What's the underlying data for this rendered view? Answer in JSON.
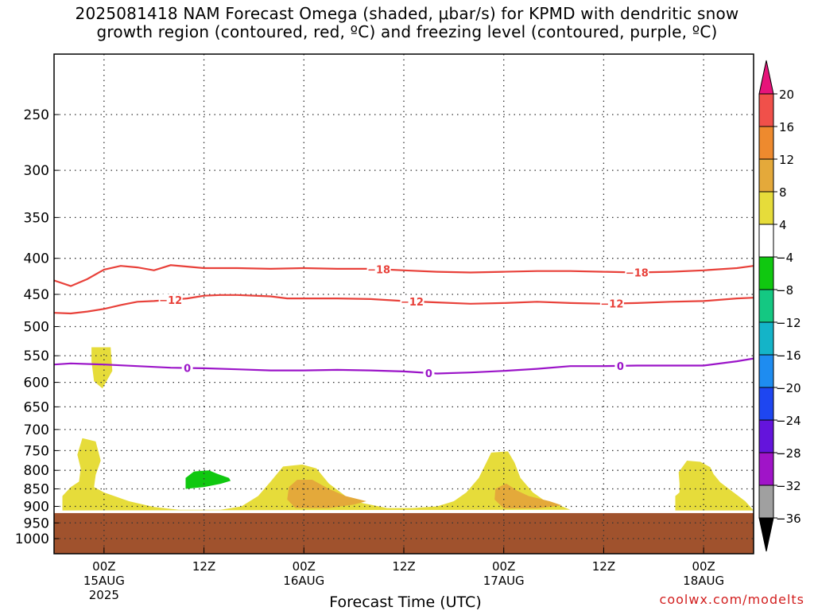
{
  "title": {
    "line1": "2025081418 NAM Forecast Omega (shaded, μbar/s) for KPMD with dendritic snow",
    "line2": "growth region (contoured, red, ºC) and freezing level (contoured, purple, ºC)"
  },
  "credit": "coolwx.com/modelts",
  "chart_data": {
    "type": "heatmap",
    "xlabel": "Forecast Time (UTC)",
    "ylabel": "",
    "xlim_hours": [
      0,
      84
    ],
    "ylim_pressure_hPa": [
      1000,
      200
    ],
    "y_scale": "log-pressure",
    "grid": true,
    "y_ticks": [
      250,
      300,
      350,
      400,
      450,
      500,
      550,
      600,
      650,
      700,
      750,
      800,
      850,
      900,
      950,
      1000
    ],
    "x_ticks": [
      {
        "hour": 6,
        "label1": "00Z",
        "label2": "15AUG",
        "label3": "2025"
      },
      {
        "hour": 18,
        "label1": "12Z",
        "label2": "",
        "label3": ""
      },
      {
        "hour": 30,
        "label1": "00Z",
        "label2": "16AUG",
        "label3": ""
      },
      {
        "hour": 42,
        "label1": "12Z",
        "label2": "",
        "label3": ""
      },
      {
        "hour": 54,
        "label1": "00Z",
        "label2": "17AUG",
        "label3": ""
      },
      {
        "hour": 66,
        "label1": "12Z",
        "label2": "",
        "label3": ""
      },
      {
        "hour": 78,
        "label1": "00Z",
        "label2": "18AUG",
        "label3": ""
      }
    ],
    "ground_level_hPa": 920,
    "ground_color": "#a0522d",
    "colorbar": {
      "units": "μbar/s",
      "labels": [
        "20",
        "16",
        "12",
        "8",
        "4",
        "−4",
        "−8",
        "−12",
        "−16",
        "−20",
        "−24",
        "−28",
        "−32",
        "−36"
      ],
      "bins": [
        {
          "from": 16,
          "to": 20,
          "color": "#f0504a"
        },
        {
          "from": 12,
          "to": 16,
          "color": "#ee8a2e"
        },
        {
          "from": 8,
          "to": 12,
          "color": "#e4a93a"
        },
        {
          "from": 4,
          "to": 8,
          "color": "#e6dc3a"
        },
        {
          "from": -4,
          "to": 4,
          "color": "#ffffff"
        },
        {
          "from": -8,
          "to": -4,
          "color": "#10c810"
        },
        {
          "from": -12,
          "to": -8,
          "color": "#14c882"
        },
        {
          "from": -16,
          "to": -12,
          "color": "#14b4c8"
        },
        {
          "from": -20,
          "to": -16,
          "color": "#1e8cf0"
        },
        {
          "from": -24,
          "to": -20,
          "color": "#1e46f0"
        },
        {
          "from": -28,
          "to": -24,
          "color": "#6414dc"
        },
        {
          "from": -32,
          "to": -28,
          "color": "#a014c8"
        },
        {
          "from": -36,
          "to": -32,
          "color": "#a0a0a0"
        }
      ],
      "over_color": "#e6147a",
      "under_color": "#000000"
    },
    "shaded_regions": [
      {
        "name": "rising-blob-1",
        "value_bin": "4 to 8",
        "color": "#e6dc3a",
        "points": [
          [
            3.4,
            720
          ],
          [
            5.0,
            728
          ],
          [
            5.6,
            775
          ],
          [
            5.0,
            812
          ],
          [
            4.8,
            845
          ],
          [
            6.0,
            860
          ],
          [
            9.0,
            885
          ],
          [
            12.0,
            902
          ],
          [
            15.0,
            910
          ],
          [
            20.0,
            910
          ],
          [
            22.5,
            900
          ],
          [
            24.5,
            870
          ],
          [
            26.0,
            830
          ],
          [
            27.5,
            790
          ],
          [
            29.8,
            785
          ],
          [
            31.5,
            795
          ],
          [
            33.0,
            835
          ],
          [
            35.0,
            870
          ],
          [
            37.0,
            890
          ],
          [
            40.0,
            905
          ],
          [
            43.0,
            905
          ],
          [
            46.0,
            900
          ],
          [
            48.0,
            885
          ],
          [
            49.5,
            860
          ],
          [
            51.0,
            820
          ],
          [
            52.5,
            755
          ],
          [
            54.5,
            752
          ],
          [
            55.3,
            780
          ],
          [
            56.0,
            820
          ],
          [
            57.5,
            860
          ],
          [
            59.0,
            885
          ],
          [
            61.0,
            900
          ],
          [
            62.0,
            910
          ],
          [
            1.0,
            912
          ],
          [
            1.0,
            870
          ],
          [
            2.0,
            845
          ],
          [
            3.0,
            830
          ],
          [
            3.2,
            795
          ],
          [
            2.8,
            760
          ]
        ]
      },
      {
        "name": "rising-blob-2",
        "value_bin": "4 to 8",
        "color": "#e6dc3a",
        "points": [
          [
            4.5,
            535
          ],
          [
            6.8,
            535
          ],
          [
            7.0,
            578
          ],
          [
            5.8,
            612
          ],
          [
            4.8,
            598
          ],
          [
            4.5,
            560
          ]
        ]
      },
      {
        "name": "rising-blob-3",
        "value_bin": "4 to 8",
        "color": "#e6dc3a",
        "points": [
          [
            75.0,
            805
          ],
          [
            76.0,
            775
          ],
          [
            77.6,
            778
          ],
          [
            78.8,
            792
          ],
          [
            79.2,
            810
          ],
          [
            80.0,
            832
          ],
          [
            81.5,
            858
          ],
          [
            83.0,
            885
          ],
          [
            84.0,
            912
          ],
          [
            74.6,
            912
          ],
          [
            74.6,
            870
          ],
          [
            75.1,
            860
          ],
          [
            75.1,
            835
          ]
        ]
      },
      {
        "name": "rising-core-1",
        "value_bin": "8 to 12",
        "color": "#e4a93a",
        "points": [
          [
            28.2,
            845
          ],
          [
            29.2,
            825
          ],
          [
            31.0,
            825
          ],
          [
            33.0,
            850
          ],
          [
            35.0,
            870
          ],
          [
            37.5,
            885
          ],
          [
            36.0,
            895
          ],
          [
            33.0,
            905
          ],
          [
            29.0,
            905
          ],
          [
            28.0,
            880
          ]
        ]
      },
      {
        "name": "rising-core-2",
        "value_bin": "8 to 12",
        "color": "#e4a93a",
        "points": [
          [
            53.0,
            850
          ],
          [
            54.3,
            835
          ],
          [
            55.6,
            855
          ],
          [
            57.0,
            870
          ],
          [
            59.5,
            885
          ],
          [
            61.0,
            897
          ],
          [
            58.0,
            906
          ],
          [
            54.0,
            906
          ],
          [
            52.9,
            880
          ]
        ]
      },
      {
        "name": "sinking-blob-1",
        "value_bin": "-8 to -4",
        "color": "#10c810",
        "points": [
          [
            15.8,
            820
          ],
          [
            16.8,
            803
          ],
          [
            18.6,
            800
          ],
          [
            19.7,
            810
          ],
          [
            21.0,
            820
          ],
          [
            21.2,
            828
          ],
          [
            20.0,
            836
          ],
          [
            18.0,
            845
          ],
          [
            15.8,
            850
          ]
        ]
      }
    ],
    "contours": [
      {
        "name": "dendritic-min-18C",
        "label": "−18",
        "color": "#e8413a",
        "label_hours": [
          39,
          70
        ],
        "points": [
          [
            0,
            430
          ],
          [
            2,
            438
          ],
          [
            4,
            428
          ],
          [
            6,
            415
          ],
          [
            8,
            410
          ],
          [
            10,
            412
          ],
          [
            12,
            416
          ],
          [
            14,
            409
          ],
          [
            16,
            411
          ],
          [
            18,
            413
          ],
          [
            22,
            413
          ],
          [
            26,
            414
          ],
          [
            30,
            413
          ],
          [
            34,
            414
          ],
          [
            38,
            414
          ],
          [
            42,
            416
          ],
          [
            46,
            418
          ],
          [
            50,
            419
          ],
          [
            54,
            418
          ],
          [
            58,
            417
          ],
          [
            62,
            417
          ],
          [
            66,
            418
          ],
          [
            70,
            419
          ],
          [
            74,
            418
          ],
          [
            78,
            416
          ],
          [
            82,
            413
          ],
          [
            84,
            410
          ]
        ]
      },
      {
        "name": "dendritic-max-12C",
        "label": "−12",
        "color": "#e8413a",
        "label_hours": [
          14,
          43,
          67
        ],
        "points": [
          [
            0,
            478
          ],
          [
            2,
            479
          ],
          [
            4,
            476
          ],
          [
            6,
            472
          ],
          [
            8,
            466
          ],
          [
            10,
            461
          ],
          [
            12,
            460
          ],
          [
            14,
            458
          ],
          [
            16,
            456
          ],
          [
            18,
            452
          ],
          [
            20,
            451
          ],
          [
            22,
            451
          ],
          [
            26,
            453
          ],
          [
            28,
            456
          ],
          [
            30,
            456
          ],
          [
            34,
            456
          ],
          [
            38,
            457
          ],
          [
            42,
            460
          ],
          [
            46,
            462
          ],
          [
            50,
            464
          ],
          [
            54,
            463
          ],
          [
            58,
            461
          ],
          [
            62,
            463
          ],
          [
            66,
            464
          ],
          [
            70,
            463
          ],
          [
            74,
            461
          ],
          [
            78,
            460
          ],
          [
            82,
            456
          ],
          [
            84,
            455
          ]
        ]
      },
      {
        "name": "freezing-level-0C",
        "label": "0",
        "color": "#9b14c8",
        "label_hours": [
          16,
          45,
          68
        ],
        "points": [
          [
            0,
            566
          ],
          [
            2,
            564
          ],
          [
            6,
            566
          ],
          [
            10,
            569
          ],
          [
            14,
            572
          ],
          [
            18,
            573
          ],
          [
            22,
            575
          ],
          [
            26,
            577
          ],
          [
            30,
            577
          ],
          [
            34,
            576
          ],
          [
            38,
            577
          ],
          [
            42,
            579
          ],
          [
            46,
            583
          ],
          [
            50,
            581
          ],
          [
            54,
            578
          ],
          [
            58,
            574
          ],
          [
            62,
            569
          ],
          [
            66,
            569
          ],
          [
            70,
            568
          ],
          [
            74,
            568
          ],
          [
            78,
            568
          ],
          [
            82,
            560
          ],
          [
            84,
            555
          ]
        ]
      }
    ]
  }
}
